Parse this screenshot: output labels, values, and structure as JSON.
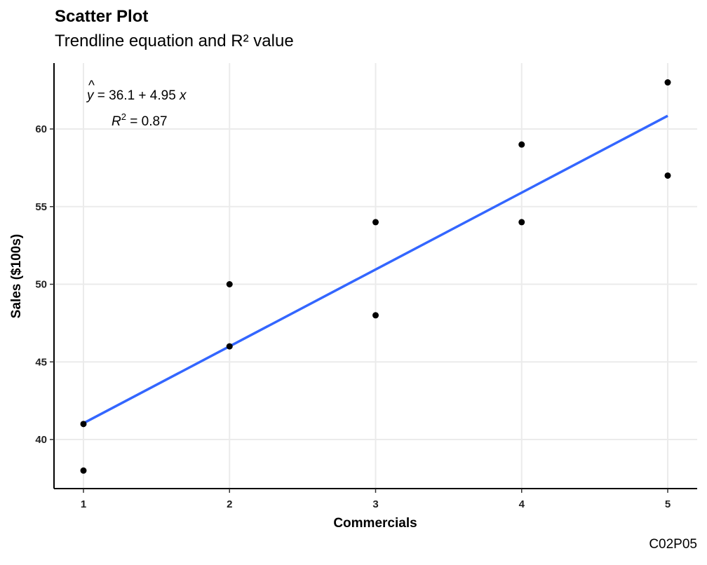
{
  "chart_data": {
    "type": "scatter",
    "title": "Scatter Plot",
    "subtitle": "Trendline equation and R² value",
    "xlabel": "Commercials",
    "ylabel": "Sales ($100s)",
    "caption": "C02P05",
    "x_ticks": [
      1,
      2,
      3,
      4,
      5
    ],
    "y_ticks": [
      40,
      45,
      50,
      55,
      60
    ],
    "xlim": [
      0.8,
      5.2
    ],
    "ylim": [
      37.1,
      63.9
    ],
    "grid": true,
    "points": [
      {
        "x": 1,
        "y": 38
      },
      {
        "x": 1,
        "y": 41
      },
      {
        "x": 2,
        "y": 46
      },
      {
        "x": 2,
        "y": 50
      },
      {
        "x": 3,
        "y": 48
      },
      {
        "x": 3,
        "y": 54
      },
      {
        "x": 4,
        "y": 54
      },
      {
        "x": 4,
        "y": 59
      },
      {
        "x": 5,
        "y": 57
      },
      {
        "x": 5,
        "y": 63
      }
    ],
    "trendline": {
      "intercept": 36.1,
      "slope": 4.95,
      "color": "#3366FF",
      "equation_yhat": "y",
      "equation_rest": " = 36.1 + 4.95 ",
      "equation_x": "x",
      "r2_r": "R",
      "r2_exp": "2",
      "r2_rest": " = 0.87"
    },
    "point_color": "#000000",
    "grid_color": "#EBEBEB"
  }
}
